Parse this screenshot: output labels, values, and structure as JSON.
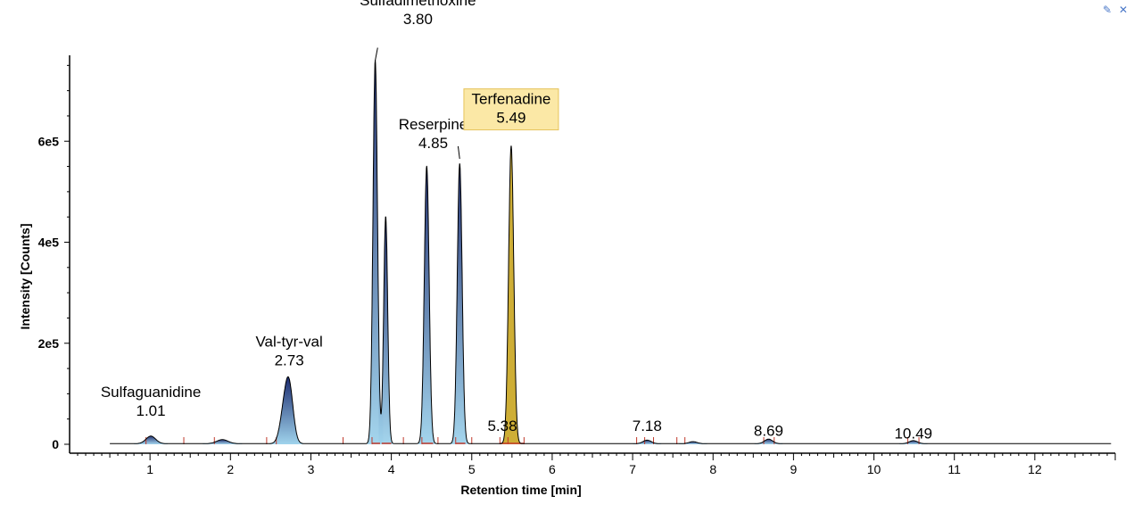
{
  "window": {
    "pin_icon": "pin-icon",
    "close_icon": "close-icon",
    "pin_glyph": "✎",
    "close_glyph": "✕"
  },
  "chart_data": {
    "type": "line",
    "xlabel": "Retention time [min]",
    "ylabel": "Intensity [Counts]",
    "xlim": [
      0,
      13
    ],
    "ylim": [
      0,
      770000
    ],
    "x_ticks": [
      1,
      2,
      3,
      4,
      5,
      6,
      7,
      8,
      9,
      10,
      11,
      12
    ],
    "x_tick_labels": [
      "1",
      "2",
      "3",
      "4",
      "5",
      "6",
      "7",
      "8",
      "9",
      "10",
      "11",
      "12"
    ],
    "y_ticks": [
      0,
      200000,
      400000,
      600000
    ],
    "y_tick_labels": [
      "0",
      "2e5",
      "4e5",
      "6e5"
    ],
    "grid": false,
    "colors": {
      "trace": "#000000",
      "fill_top": "#1a2a6e",
      "fill_bottom": "#9fd3ec",
      "highlight_fill": "#c9a520",
      "highlight_box_fill": "#fbe8a6",
      "highlight_box_stroke": "#e6c35c",
      "integration_marks": "#c0392b"
    },
    "peaks": [
      {
        "rt": 1.01,
        "height": 15000,
        "width": 0.06
      },
      {
        "rt": 1.9,
        "height": 8000,
        "width": 0.07
      },
      {
        "rt": 2.66,
        "height": 50000,
        "width": 0.05
      },
      {
        "rt": 2.73,
        "height": 110000,
        "width": 0.05
      },
      {
        "rt": 3.8,
        "height": 760000,
        "width": 0.028
      },
      {
        "rt": 3.93,
        "height": 450000,
        "width": 0.025
      },
      {
        "rt": 4.44,
        "height": 550000,
        "width": 0.03
      },
      {
        "rt": 4.85,
        "height": 555000,
        "width": 0.03
      },
      {
        "rt": 5.49,
        "height": 590000,
        "width": 0.032
      },
      {
        "rt": 7.18,
        "height": 7000,
        "width": 0.05
      },
      {
        "rt": 7.75,
        "height": 4000,
        "width": 0.05
      },
      {
        "rt": 8.69,
        "height": 9000,
        "width": 0.05
      },
      {
        "rt": 10.49,
        "height": 6000,
        "width": 0.05
      }
    ],
    "annotations": [
      {
        "name": "Sulfaguanidine",
        "rt": "1.01",
        "x": 1.01,
        "label_y": 60000,
        "highlight": false
      },
      {
        "name": "Val-tyr-val",
        "rt": "2.73",
        "x": 2.73,
        "label_y": 160000,
        "highlight": false
      },
      {
        "name": "Sulfadimethoxine",
        "rt": "3.80",
        "x": 4.33,
        "label_y": 835000,
        "highlight": false
      },
      {
        "name": "Reserpine",
        "rt": "4.85",
        "x": 4.52,
        "label_y": 590000,
        "highlight": false
      },
      {
        "name": "Terfenadine",
        "rt": "5.49",
        "x": 5.49,
        "label_y": 640000,
        "highlight": true
      },
      {
        "name": "",
        "rt": "5.38",
        "x": 5.38,
        "label_y": 30000,
        "highlight": false
      },
      {
        "name": "",
        "rt": "7.18",
        "x": 7.18,
        "label_y": 30000,
        "highlight": false
      },
      {
        "name": "",
        "rt": "8.69",
        "x": 8.69,
        "label_y": 20000,
        "highlight": false
      },
      {
        "name": "",
        "rt": "10.49",
        "x": 10.49,
        "label_y": 15000,
        "highlight": false
      }
    ],
    "integration_marks": [
      0.95,
      1.42,
      1.8,
      2.45,
      2.57,
      3.4,
      3.76,
      4.15,
      4.38,
      4.58,
      4.8,
      5.0,
      5.35,
      5.45,
      5.65,
      7.05,
      7.15,
      7.26,
      7.55,
      7.65,
      8.63,
      8.76,
      10.42,
      10.56
    ]
  }
}
